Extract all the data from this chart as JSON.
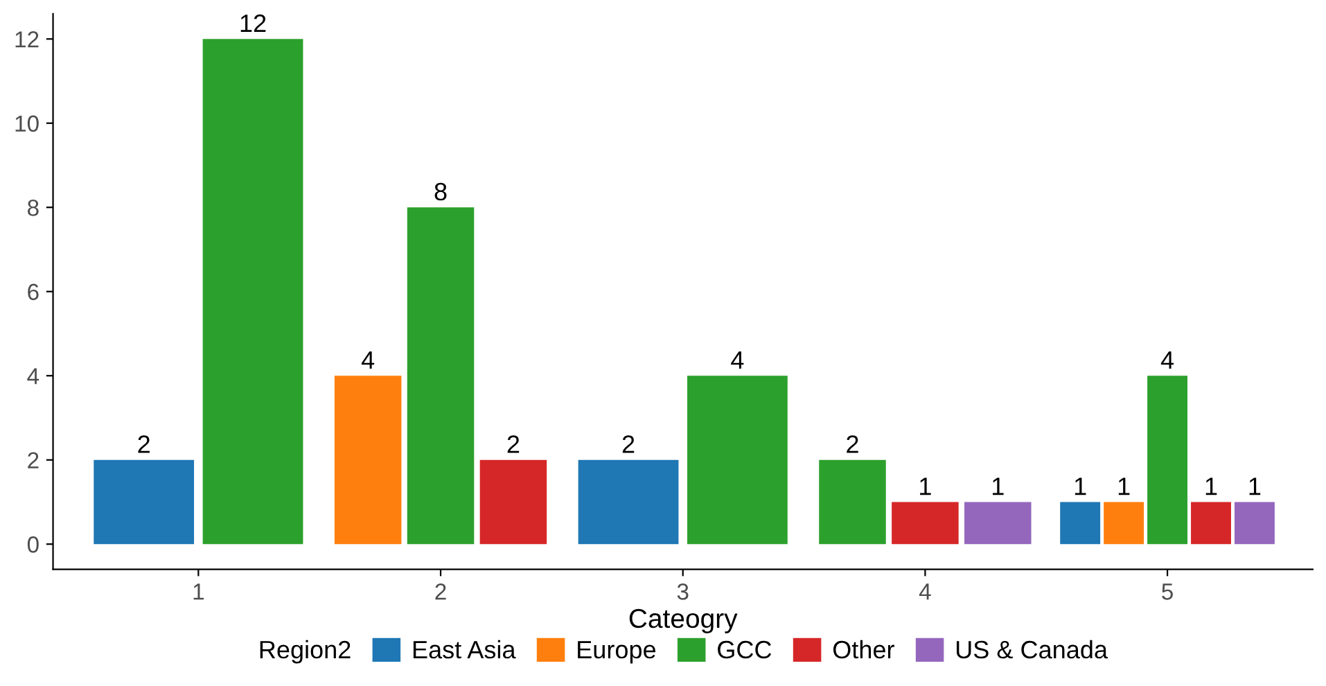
{
  "chart_data": {
    "type": "bar",
    "xlabel": "Cateogry",
    "legend_title": "Region2",
    "categories": [
      "1",
      "2",
      "3",
      "4",
      "5"
    ],
    "series": [
      {
        "name": "East Asia",
        "color": "#1f77b4",
        "values": [
          2,
          null,
          2,
          null,
          1
        ]
      },
      {
        "name": "Europe",
        "color": "#ff7f0e",
        "values": [
          null,
          4,
          null,
          null,
          1
        ]
      },
      {
        "name": "GCC",
        "color": "#2ca02c",
        "values": [
          12,
          8,
          4,
          2,
          4
        ]
      },
      {
        "name": "Other",
        "color": "#d62728",
        "values": [
          null,
          2,
          null,
          1,
          1
        ]
      },
      {
        "name": "US & Canada",
        "color": "#9467bd",
        "values": [
          null,
          null,
          null,
          1,
          1
        ]
      }
    ],
    "ylim": [
      -0.6,
      12.6
    ],
    "yticks": [
      0,
      2,
      4,
      6,
      8,
      10,
      12
    ],
    "data_labels": true,
    "grid": false,
    "legend": "bottom"
  }
}
